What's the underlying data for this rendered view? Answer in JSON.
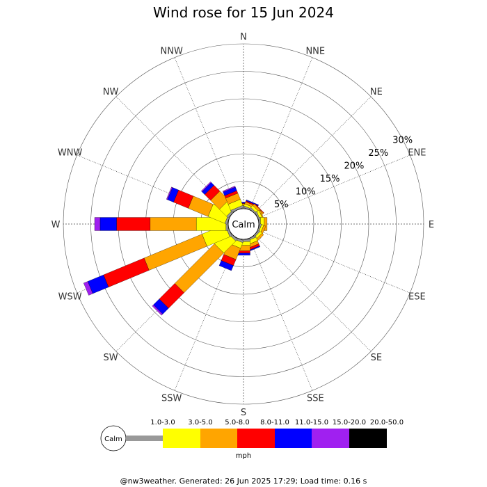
{
  "title": "Wind rose for 15 Jun 2024",
  "footer": "@nw3weather. Generated: 26 Jun 2025 17:29; Load time: 0.16 s",
  "calm_label": "Calm",
  "legend_unit": "mph",
  "chart_data": {
    "type": "wind-rose",
    "title": "Wind rose for 15 Jun 2024",
    "directions": [
      "N",
      "NNE",
      "NE",
      "ENE",
      "E",
      "ESE",
      "SE",
      "SSE",
      "S",
      "SSW",
      "SW",
      "WSW",
      "W",
      "WNW",
      "NW",
      "NNW"
    ],
    "radial_ticks": [
      "5%",
      "10%",
      "15%",
      "20%",
      "25%",
      "30%"
    ],
    "radial_range": [
      0,
      30
    ],
    "grid": true,
    "speed_bins": [
      {
        "name": "1.0-3.0",
        "color": "#999999"
      },
      {
        "name": "3.0-5.0",
        "color": "#ffff00"
      },
      {
        "name": "5.0-8.0",
        "color": "#ffa500"
      },
      {
        "name": "8.0-11.0",
        "color": "#ff0000"
      },
      {
        "name": "11.0-15.0",
        "color": "#0000ff"
      },
      {
        "name": "15.0-20.0",
        "color": "#a020f0"
      },
      {
        "name": "20.0-50.0",
        "color": "#000000"
      }
    ],
    "cumulative_percent": {
      "N": [
        0.3,
        0.6,
        0.9,
        1.0,
        1.2,
        1.2,
        1.2
      ],
      "NNE": [
        0.3,
        0.7,
        1.1,
        1.3,
        1.5,
        1.5,
        1.5
      ],
      "NE": [
        0.3,
        0.8,
        1.2,
        1.3,
        1.3,
        1.3,
        1.3
      ],
      "ENE": [
        0.3,
        0.8,
        1.0,
        1.0,
        1.0,
        1.0,
        1.0
      ],
      "E": [
        0.3,
        1.0,
        1.5,
        1.5,
        1.5,
        1.5,
        1.5
      ],
      "ESE": [
        0.3,
        0.7,
        1.1,
        1.1,
        1.1,
        1.1,
        1.1
      ],
      "SE": [
        0.3,
        0.8,
        1.2,
        1.2,
        1.2,
        1.2,
        1.2
      ],
      "SSE": [
        0.3,
        1.0,
        1.6,
        2.0,
        2.2,
        2.2,
        2.2
      ],
      "S": [
        0.4,
        1.1,
        2.1,
        2.5,
        2.9,
        2.9,
        2.9
      ],
      "SSW": [
        0.4,
        1.5,
        3.7,
        4.9,
        5.9,
        5.9,
        5.9
      ],
      "SW": [
        0.4,
        3.5,
        13.7,
        17.7,
        19.2,
        19.5,
        19.5
      ],
      "WSW": [
        0.4,
        4.9,
        16.3,
        24.3,
        27.4,
        28.2,
        28.2
      ],
      "W": [
        0.4,
        5.8,
        14.2,
        20.3,
        23.3,
        24.3,
        24.3
      ],
      "WNW": [
        0.4,
        3.7,
        7.6,
        10.5,
        11.7,
        11.9,
        11.9
      ],
      "NW": [
        0.4,
        2.2,
        4.5,
        6.0,
        6.7,
        6.9,
        6.9
      ],
      "NNW": [
        0.4,
        1.6,
        2.8,
        3.3,
        4.0,
        4.2,
        4.2
      ]
    }
  }
}
